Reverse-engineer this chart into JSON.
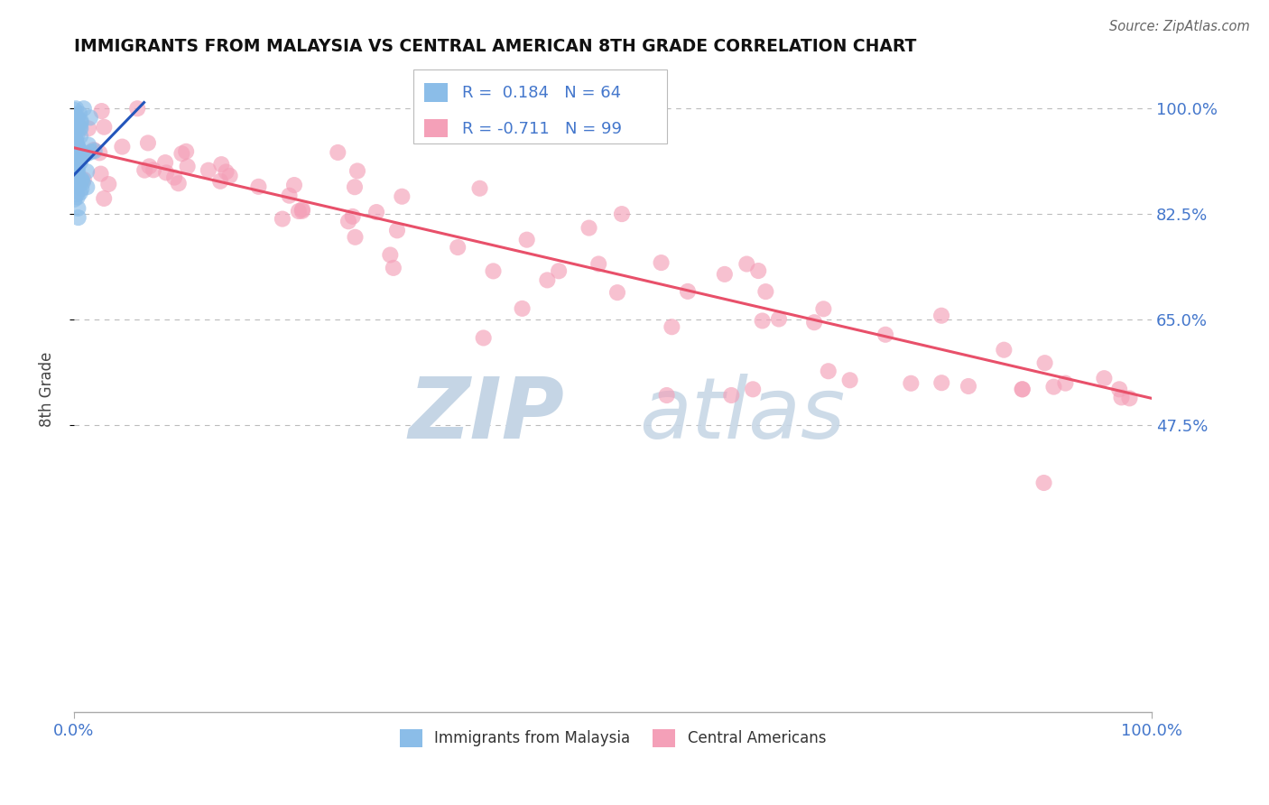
{
  "title": "IMMIGRANTS FROM MALAYSIA VS CENTRAL AMERICAN 8TH GRADE CORRELATION CHART",
  "source": "Source: ZipAtlas.com",
  "ylabel": "8th Grade",
  "xlim": [
    0.0,
    1.0
  ],
  "ylim": [
    0.0,
    1.07
  ],
  "yticks": [
    0.475,
    0.65,
    0.825,
    1.0
  ],
  "ytick_labels": [
    "47.5%",
    "65.0%",
    "82.5%",
    "100.0%"
  ],
  "label_blue": "Immigrants from Malaysia",
  "label_pink": "Central Americans",
  "blue_color": "#8bbde8",
  "pink_color": "#f4a0b8",
  "blue_line_color": "#2255bb",
  "pink_line_color": "#e8506a",
  "grid_color": "#bbbbbb",
  "axis_label_color": "#4477cc",
  "watermark_zip_color": "#c5d5e5",
  "watermark_atlas_color": "#c5d5e5",
  "legend_R_blue": "0.184",
  "legend_N_blue": "64",
  "legend_R_pink": "-0.711",
  "legend_N_pink": "99",
  "pink_line_x0": 0.0,
  "pink_line_y0": 0.935,
  "pink_line_x1": 1.0,
  "pink_line_y1": 0.52,
  "blue_line_x0": 0.0,
  "blue_line_y0": 0.89,
  "blue_line_x1": 0.065,
  "blue_line_y1": 1.01
}
